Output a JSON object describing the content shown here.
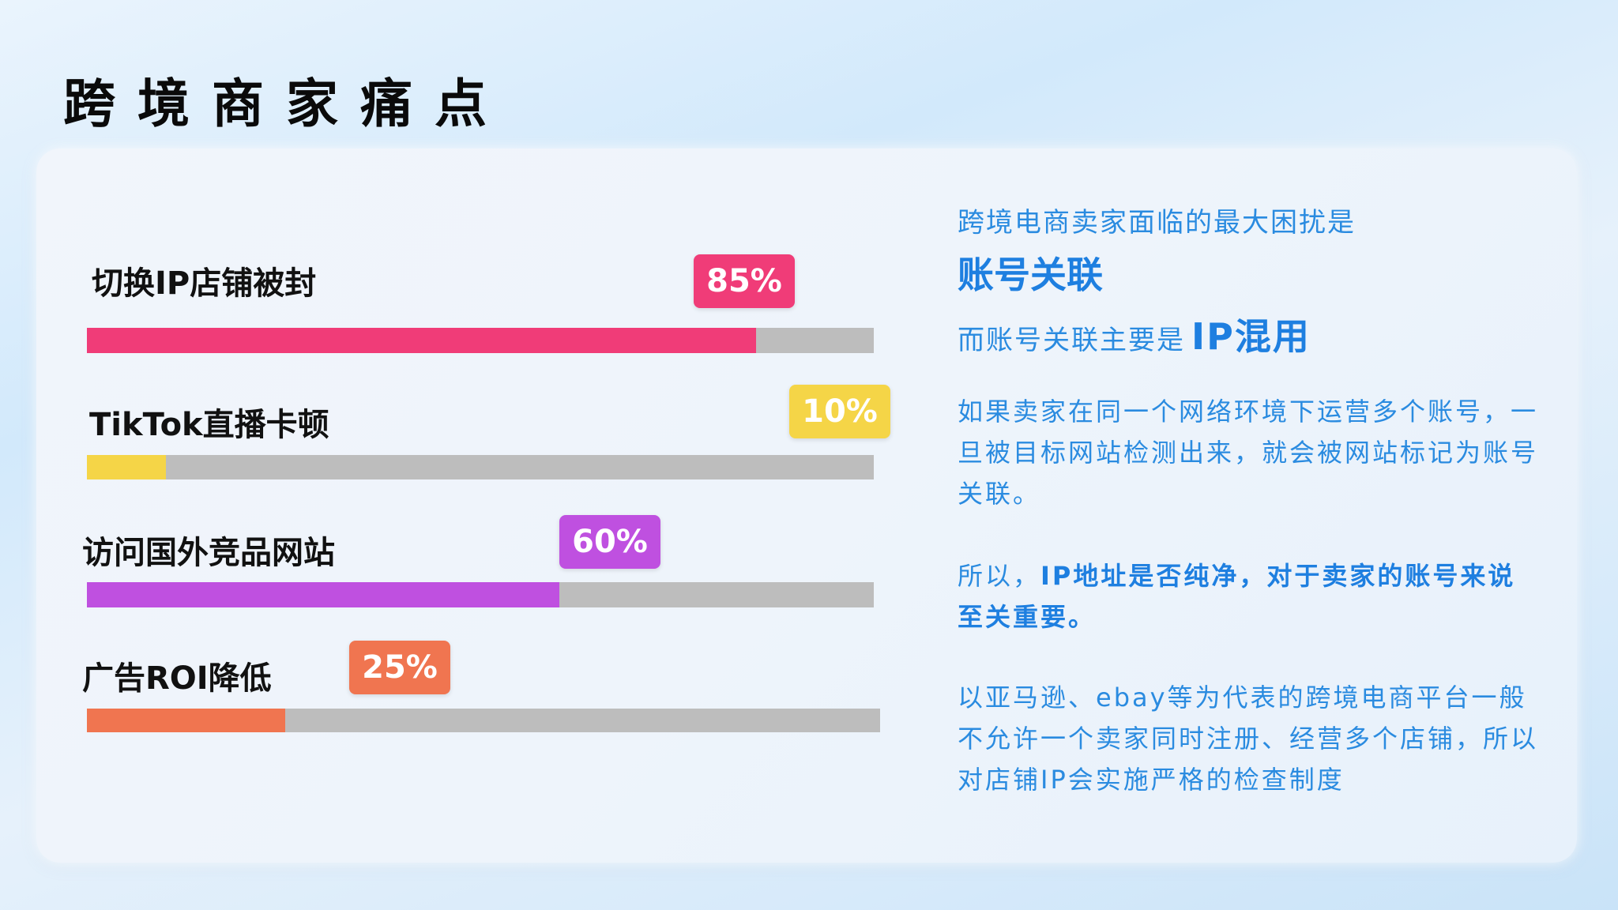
{
  "title": "跨境商家痛点",
  "pain_points": [
    {
      "label": "切换IP店铺被封",
      "value": 85,
      "value_label": "85%",
      "color": "#f03c78"
    },
    {
      "label": "TikTok直播卡顿",
      "value": 10,
      "value_label": "10%",
      "color": "#f5d547"
    },
    {
      "label": "访问国外竞品网站",
      "value": 60,
      "value_label": "60%",
      "color": "#bf50e0"
    },
    {
      "label": "广告ROI降低",
      "value": 25,
      "value_label": "25%",
      "color": "#f07550"
    }
  ],
  "colors": {
    "track": "#bdbdbd",
    "text_accent": "#1e7fe0"
  },
  "right": {
    "line1": "跨境电商卖家面临的最大困扰是",
    "line2": "账号关联",
    "line3_prefix": "而账号关联主要是",
    "line3_emph": "IP混用",
    "para1": "如果卖家在同一个网络环境下运营多个账号，一旦被目标网站检测出来，就会被网站标记为账号关联。",
    "para2_prefix": "所以，",
    "para2_emph": "IP地址是否纯净，对于卖家的账号来说至关重要。",
    "para3": "以亚马逊、ebay等为代表的跨境电商平台一般不允许一个卖家同时注册、经营多个店铺，所以对店铺IP会实施严格的检查制度"
  }
}
